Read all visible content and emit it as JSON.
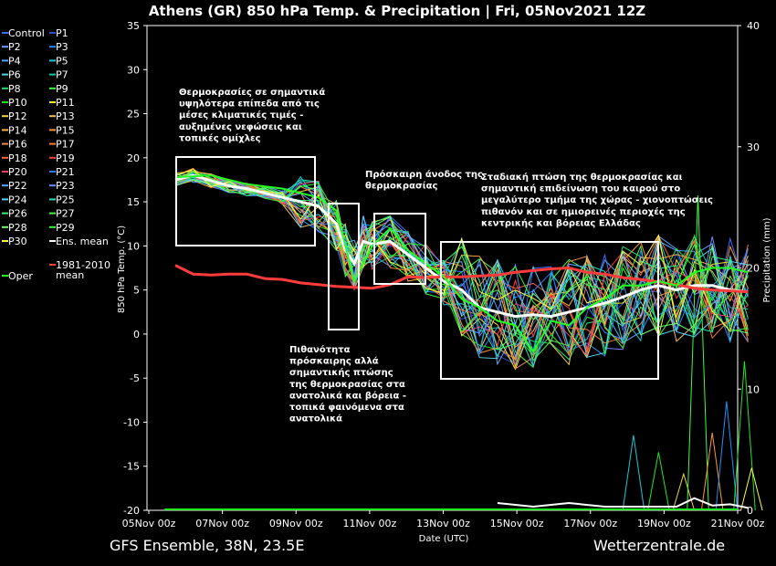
{
  "footer": {
    "source": "GFS Ensemble, 38N, 23.5E",
    "site": "Wetterzentrale.de"
  },
  "chart_data": {
    "type": "line",
    "title": "Athens  (GR)  850 hPa Temp. & Precipitation | Fri, 05Nov2021 12Z",
    "xlabel": "Date (UTC)",
    "ylabel": "850 hPa Temp. (°C)",
    "y2label": "Precipitation (mm)",
    "x_range": [
      "2021-11-05T12:00Z",
      "2021-11-21T12:00Z"
    ],
    "x_ticks": [
      "05Nov 00z",
      "07Nov 00z",
      "09Nov 00z",
      "11Nov 00z",
      "13Nov 00z",
      "15Nov 00z",
      "17Nov 00z",
      "19Nov 00z",
      "21Nov 00z"
    ],
    "y_ticks": [
      35,
      30,
      25,
      20,
      15,
      10,
      5,
      0,
      -5,
      -10,
      -15,
      -20
    ],
    "ylim": [
      -20,
      35
    ],
    "y2_ticks": [
      40,
      30,
      20,
      10,
      0
    ],
    "y2lim": [
      0,
      40
    ],
    "grid": false,
    "legend": {
      "placement": "left",
      "entries": [
        {
          "label": "Control",
          "color": "#3c6cff"
        },
        {
          "label": "P1",
          "color": "#2f4fc8"
        },
        {
          "label": "P2",
          "color": "#6aa0ff"
        },
        {
          "label": "P3",
          "color": "#1e90ff"
        },
        {
          "label": "P4",
          "color": "#4ea6ff"
        },
        {
          "label": "P5",
          "color": "#18c8d8"
        },
        {
          "label": "P6",
          "color": "#4fd3e6"
        },
        {
          "label": "P7",
          "color": "#10c8a0"
        },
        {
          "label": "P8",
          "color": "#20e070"
        },
        {
          "label": "P9",
          "color": "#3bff3b"
        },
        {
          "label": "P10",
          "color": "#22e822"
        },
        {
          "label": "P11",
          "color": "#f6f02a"
        },
        {
          "label": "P12",
          "color": "#f2d23a"
        },
        {
          "label": "P13",
          "color": "#f0c060"
        },
        {
          "label": "P14",
          "color": "#ffb248"
        },
        {
          "label": "P15",
          "color": "#ff9a2e"
        },
        {
          "label": "P16",
          "color": "#f08850"
        },
        {
          "label": "P17",
          "color": "#ff7a3a"
        },
        {
          "label": "P18",
          "color": "#ff6242"
        },
        {
          "label": "P19",
          "color": "#ff3b3b"
        },
        {
          "label": "P20",
          "color": "#ff3a6a"
        },
        {
          "label": "P21",
          "color": "#2e7cff"
        },
        {
          "label": "P22",
          "color": "#5aa8ff"
        },
        {
          "label": "P23",
          "color": "#6b8cff"
        },
        {
          "label": "P24",
          "color": "#58d0ff"
        },
        {
          "label": "P25",
          "color": "#28e0c0"
        },
        {
          "label": "P26",
          "color": "#38f080"
        },
        {
          "label": "P27",
          "color": "#4af04a"
        },
        {
          "label": "P28",
          "color": "#70ff70"
        },
        {
          "label": "P29",
          "color": "#30ff30"
        },
        {
          "label": "P30",
          "color": "#ffff40"
        },
        {
          "label": "Ens. mean",
          "color": "#ffffff"
        },
        {
          "label": "Oper",
          "color": "#22ff22"
        },
        {
          "label": "1981-2010 mean",
          "color": "#ff3b3b"
        }
      ]
    },
    "series": [
      {
        "name": "Ens. mean",
        "color": "#ffffff",
        "x_days": [
          0,
          0.5,
          1,
          1.5,
          2,
          2.5,
          3,
          3.5,
          4,
          4.5,
          4.75,
          5,
          5.25,
          5.5,
          6,
          6.5,
          7,
          7.5,
          8,
          8.5,
          9,
          9.5,
          10,
          10.5,
          11,
          11.5,
          12,
          12.5,
          13,
          13.5,
          14,
          14.5,
          15,
          15.5,
          16
        ],
        "values": [
          17.5,
          18,
          17.4,
          16.8,
          16.5,
          16,
          15.5,
          15,
          14.5,
          12.5,
          9.5,
          8,
          10.5,
          10.2,
          10.5,
          9,
          7.5,
          6,
          5,
          3,
          2.5,
          2,
          2.2,
          2,
          2.5,
          3,
          3.5,
          4.2,
          5,
          5.5,
          5,
          5.5,
          5.5,
          5,
          4.8
        ]
      },
      {
        "name": "1981-2010 mean",
        "color": "#ff3b3b",
        "x_days": [
          0,
          0.5,
          1,
          1.5,
          2,
          2.5,
          3,
          3.5,
          4,
          4.5,
          5,
          5.5,
          6,
          6.5,
          7,
          7.5,
          8,
          8.5,
          9,
          9.5,
          10,
          10.5,
          11,
          11.5,
          12,
          12.5,
          13,
          13.5,
          14,
          14.5,
          15,
          15.5,
          16
        ],
        "values": [
          7.8,
          6.8,
          6.7,
          6.8,
          6.8,
          6.3,
          6.2,
          5.8,
          5.6,
          5.4,
          5.3,
          5.2,
          5.6,
          6.5,
          6.4,
          6.5,
          6.5,
          6.6,
          6.7,
          7,
          7.2,
          7.4,
          7.5,
          7,
          6.8,
          6.4,
          6.2,
          5.9,
          5.6,
          5.2,
          5,
          4.9,
          4.8
        ]
      },
      {
        "name": "Oper",
        "color": "#22ff22",
        "x_days": [
          0,
          1,
          2,
          3,
          4,
          4.5,
          4.75,
          5,
          5.5,
          6,
          6.5,
          7,
          7.5,
          8,
          8.5,
          9,
          9.5,
          10,
          10.5,
          11,
          11.5,
          12,
          12.5,
          13,
          13.5,
          14,
          14.5,
          15,
          15.5,
          16
        ],
        "values": [
          17.8,
          18,
          17,
          16.5,
          15.5,
          14,
          10,
          6,
          10,
          12,
          9.5,
          8,
          6.5,
          4,
          3,
          1.5,
          1,
          -2,
          1.5,
          1,
          3,
          4,
          5.5,
          5.5,
          6,
          5.5,
          7,
          7.5,
          7.5,
          7
        ]
      }
    ],
    "precip_mean": {
      "x_days": [
        9,
        10,
        11,
        12,
        13,
        14,
        14.5,
        15,
        15.5,
        16
      ],
      "values": [
        0.6,
        0.3,
        0.6,
        0.3,
        0.3,
        0.3,
        1,
        0.4,
        0.5,
        0.2
      ]
    },
    "annotations": [
      {
        "text": "Θερμοκρασίες σε σημαντικά υψηλότερα επίπεδα από τις μέσες κλιματικές τιμές - αυξημένες νεφώσεις και τοπικές ομίχλες"
      },
      {
        "text": "Πρόσκαιρη άνοδος της θερμοκρασίας"
      },
      {
        "text": "Σταδιακή πτώση της θερμοκρασίας και σημαντική επιδείνωση του καιρού στο μεγαλύτερο τμήμα της χώρας - χιονοπτώσεις πιθανόν και σε ημιορεινές περιοχές της κεντρικής και βόρειας Ελλάδας"
      },
      {
        "text": "Πιθανότητα πρόσκαιρης αλλά σημαντικής πτώσης της θερμοκρασίας στα ανατολικά και βόρεια - τοπικά φαινόμενα στα ανατολικά"
      }
    ]
  }
}
